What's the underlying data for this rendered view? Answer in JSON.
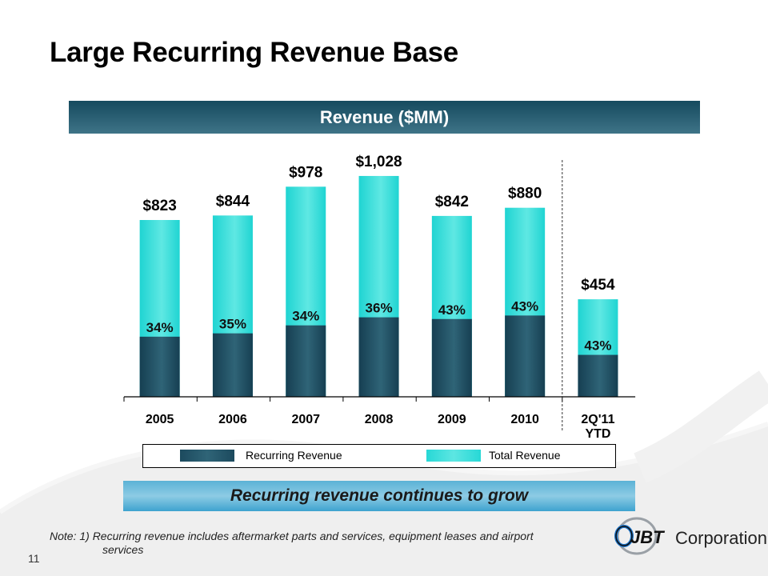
{
  "slide": {
    "title": "Large Recurring Revenue Base",
    "page_number": "11",
    "callout": "Recurring revenue continues to grow",
    "note_line1": "Note: 1) Recurring revenue includes aftermarket parts and services, equipment leases and airport",
    "note_line2": "services",
    "logo_mark": "JBT",
    "logo_text": "Corporation"
  },
  "colors": {
    "recurring": "#1f5064",
    "total": "#3ee0dc",
    "header": "#2a6175",
    "callout": "#5bb2d6"
  },
  "chart_data": {
    "type": "bar",
    "stacked": true,
    "title": "Revenue ($MM)",
    "xlabel": "",
    "ylabel": "",
    "categories": [
      "2005",
      "2006",
      "2007",
      "2008",
      "2009",
      "2010",
      "2Q'11 YTD"
    ],
    "category_lines": [
      [
        "2005"
      ],
      [
        "2006"
      ],
      [
        "2007"
      ],
      [
        "2008"
      ],
      [
        "2009"
      ],
      [
        "2010"
      ],
      [
        "2Q'11",
        "YTD"
      ]
    ],
    "series": [
      {
        "name": "Recurring Revenue",
        "pct_of_total": [
          34,
          35,
          34,
          36,
          43,
          43,
          43
        ]
      },
      {
        "name": "Total Revenue",
        "values": [
          823,
          844,
          978,
          1028,
          842,
          880,
          454
        ]
      }
    ],
    "total_labels": [
      "$823",
      "$844",
      "$978",
      "$1,028",
      "$842",
      "$880",
      "$454"
    ],
    "pct_labels": [
      "34%",
      "35%",
      "34%",
      "36%",
      "43%",
      "43%",
      "43%"
    ],
    "ylim": [
      0,
      1050
    ],
    "grid": false,
    "separator_before_category": "2Q'11 YTD",
    "legend": {
      "position": "bottom",
      "entries": [
        "Recurring Revenue",
        "Total Revenue"
      ]
    }
  }
}
